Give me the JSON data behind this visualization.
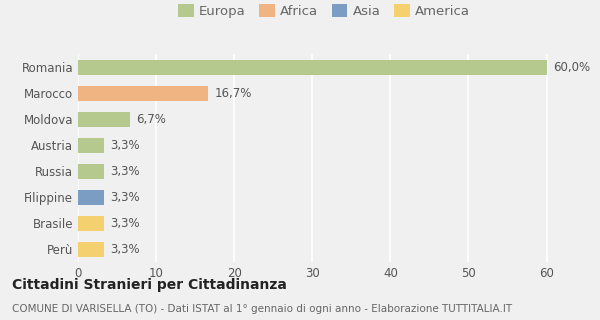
{
  "categories": [
    "Romania",
    "Marocco",
    "Moldova",
    "Austria",
    "Russia",
    "Filippine",
    "Brasile",
    "Perù"
  ],
  "values": [
    60.0,
    16.7,
    6.7,
    3.3,
    3.3,
    3.3,
    3.3,
    3.3
  ],
  "labels": [
    "60,0%",
    "16,7%",
    "6,7%",
    "3,3%",
    "3,3%",
    "3,3%",
    "3,3%",
    "3,3%"
  ],
  "colors": [
    "#b5c98e",
    "#f0b482",
    "#b5c98e",
    "#b5c98e",
    "#b5c98e",
    "#7b9dc4",
    "#f5d06e",
    "#f5d06e"
  ],
  "legend": {
    "labels": [
      "Europa",
      "Africa",
      "Asia",
      "America"
    ],
    "colors": [
      "#b5c98e",
      "#f0b482",
      "#7b9dc4",
      "#f5d06e"
    ]
  },
  "xlim": [
    0,
    63
  ],
  "xticks": [
    0,
    10,
    20,
    30,
    40,
    50,
    60
  ],
  "title": "Cittadini Stranieri per Cittadinanza",
  "subtitle": "COMUNE DI VARISELLA (TO) - Dati ISTAT al 1° gennaio di ogni anno - Elaborazione TUTTITALIA.IT",
  "background_color": "#f0f0f0",
  "grid_color": "#ffffff",
  "bar_height": 0.55,
  "title_fontsize": 10,
  "subtitle_fontsize": 7.5,
  "label_fontsize": 8.5,
  "tick_fontsize": 8.5,
  "legend_fontsize": 9.5
}
